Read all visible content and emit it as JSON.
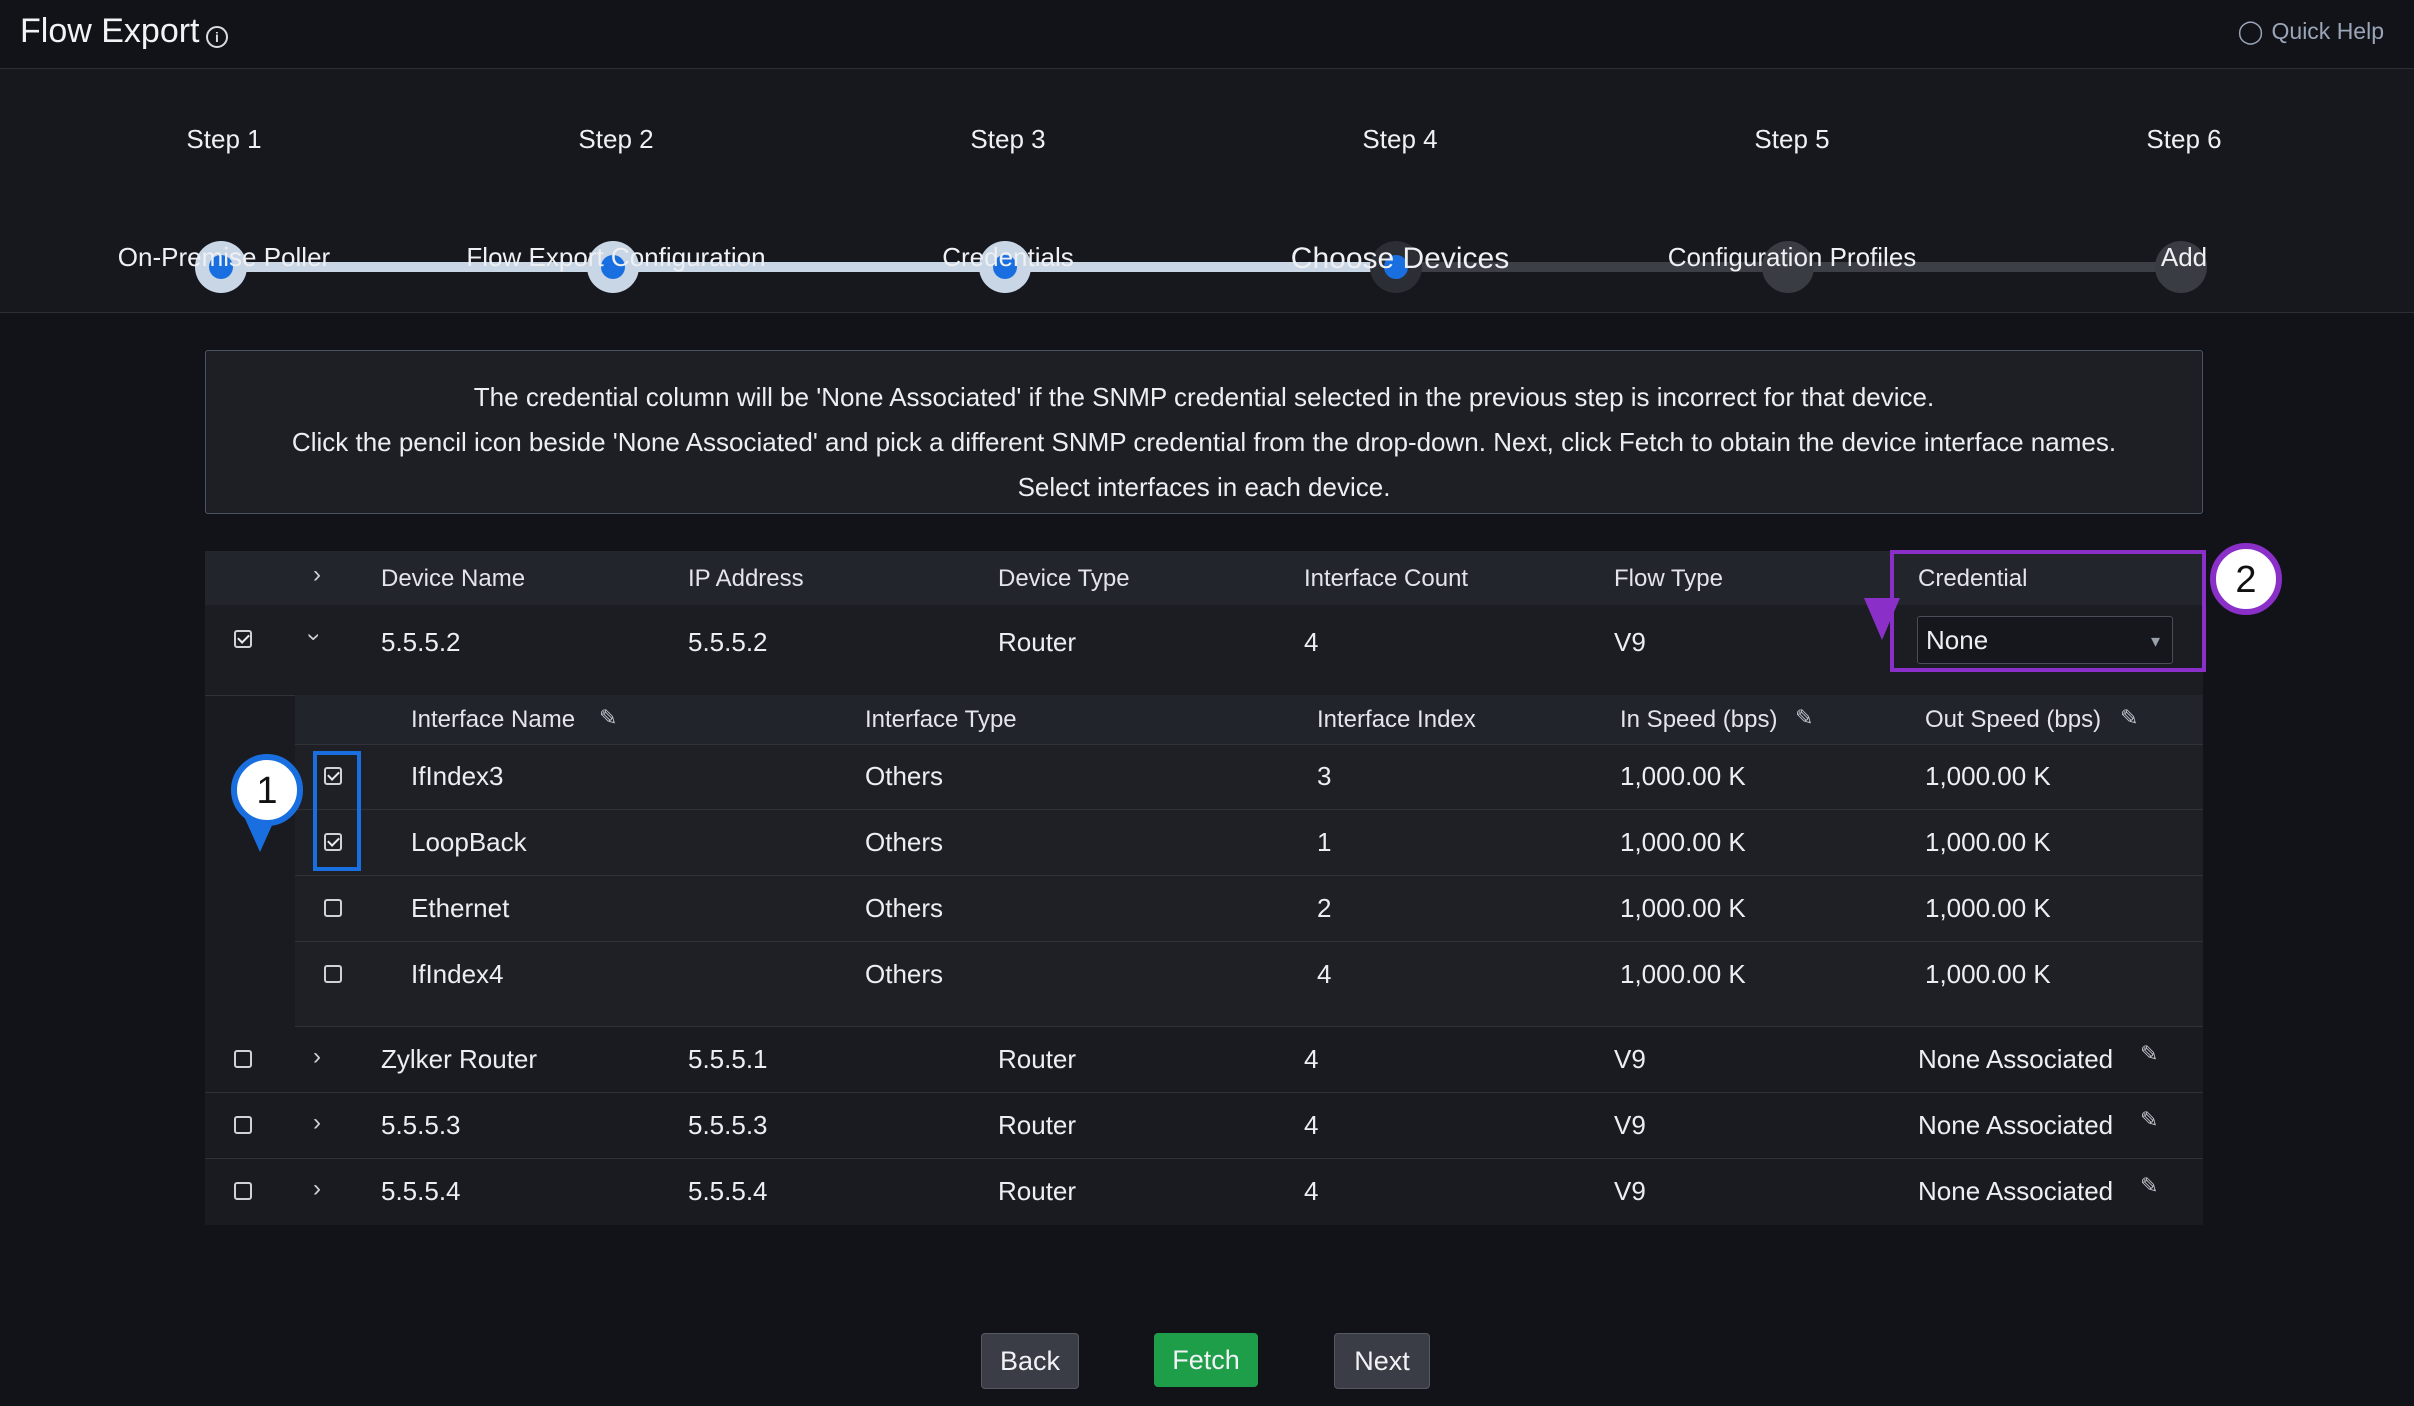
{
  "header": {
    "title": "Flow Export",
    "info_icon": "info-icon",
    "quick_help": "Quick Help",
    "quick_help_icon": "lightbulb-icon"
  },
  "stepper": {
    "steps": [
      {
        "title": "Step 1",
        "label": "On-Premise Poller",
        "state": "done"
      },
      {
        "title": "Step 2",
        "label": "Flow Export Configuration",
        "state": "done"
      },
      {
        "title": "Step 3",
        "label": "Credentials",
        "state": "done"
      },
      {
        "title": "Step 4",
        "label": "Choose Devices",
        "state": "current"
      },
      {
        "title": "Step 5",
        "label": "Configuration Profiles",
        "state": "pending"
      },
      {
        "title": "Step 6",
        "label": "Add",
        "state": "pending"
      }
    ]
  },
  "info": {
    "lines": [
      "The credential column will be 'None Associated' if the SNMP credential selected in the previous step is incorrect for that device.",
      "Click the pencil icon beside 'None Associated' and pick a different SNMP credential from the drop-down. Next, click Fetch to obtain the device interface names.",
      "Select interfaces in each device."
    ]
  },
  "table": {
    "headers": [
      "Device Name",
      "IP Address",
      "Device Type",
      "Interface Count",
      "Flow Type",
      "Credential"
    ],
    "expanded_device": {
      "name": "5.5.5.2",
      "ip": "5.5.5.2",
      "type": "Router",
      "count": "4",
      "flow": "V9",
      "credential_select": "None",
      "checked": true
    },
    "sub_headers": [
      "Interface Name",
      "Interface Type",
      "Interface Index",
      "In Speed (bps)",
      "Out Speed (bps)"
    ],
    "interfaces": [
      {
        "name": "IfIndex3",
        "type": "Others",
        "index": "3",
        "in": "1,000.00 K",
        "out": "1,000.00 K",
        "checked": true
      },
      {
        "name": "LoopBack",
        "type": "Others",
        "index": "1",
        "in": "1,000.00 K",
        "out": "1,000.00 K",
        "checked": true
      },
      {
        "name": "Ethernet",
        "type": "Others",
        "index": "2",
        "in": "1,000.00 K",
        "out": "1,000.00 K",
        "checked": false
      },
      {
        "name": "IfIndex4",
        "type": "Others",
        "index": "4",
        "in": "1,000.00 K",
        "out": "1,000.00 K",
        "checked": false
      }
    ],
    "devices": [
      {
        "name": "Zylker Router",
        "ip": "5.5.5.1",
        "type": "Router",
        "count": "4",
        "flow": "V9",
        "credential": "None Associated"
      },
      {
        "name": "5.5.5.3",
        "ip": "5.5.5.3",
        "type": "Router",
        "count": "4",
        "flow": "V9",
        "credential": "None Associated"
      },
      {
        "name": "5.5.5.4",
        "ip": "5.5.5.4",
        "type": "Router",
        "count": "4",
        "flow": "V9",
        "credential": "None Associated"
      }
    ]
  },
  "markers": {
    "one": "1",
    "two": "2"
  },
  "buttons": {
    "back": "Back",
    "fetch": "Fetch",
    "next": "Next"
  },
  "colors": {
    "accent_blue": "#1a6fe0",
    "highlight_purple": "#8a2fc8",
    "fetch_green": "#1f9e4a"
  }
}
